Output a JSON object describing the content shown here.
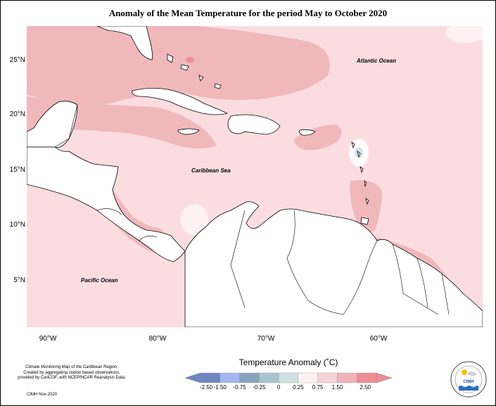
{
  "title": "Anomaly of the Mean Temperature for the period May to October 2020",
  "map": {
    "y_ticks": [
      "25°N",
      "20°N",
      "15°N",
      "10°N",
      "5°N"
    ],
    "x_ticks": [
      "90°W",
      "80°W",
      "70°W",
      "60°W"
    ],
    "labels": {
      "atlantic": "Atlantic Ocean",
      "caribbean": "Caribbean Sea",
      "pacific": "Pacific Ocean"
    }
  },
  "legend": {
    "title": "Temperature Anomaly (˚C)",
    "bins": [
      {
        "color": "#6f86c4"
      },
      {
        "color": "#a3b6f0"
      },
      {
        "color": "#8aa3bf"
      },
      {
        "color": "#a9c5cf"
      },
      {
        "color": "#cfe1e4"
      },
      {
        "color": "#fdf1f3"
      },
      {
        "color": "#f7d3d8"
      },
      {
        "color": "#f1b3b8"
      },
      {
        "color": "#ec8d93"
      }
    ],
    "labels": [
      "-2.50",
      "-1.50",
      "-0.75",
      "-0.25",
      "0",
      "0.25",
      "0.75",
      "1.50",
      "2.50"
    ]
  },
  "credit": {
    "line1": "Climate Monitoring Map of the Caribbean Region.",
    "line2": "Created by aggregating station based observations,",
    "line3": "provided by CariCOF, with NCEP/NCAR Reanalysis Data.",
    "date": "CIMH Nov-2020"
  },
  "logo": {
    "text": "CIMH"
  }
}
